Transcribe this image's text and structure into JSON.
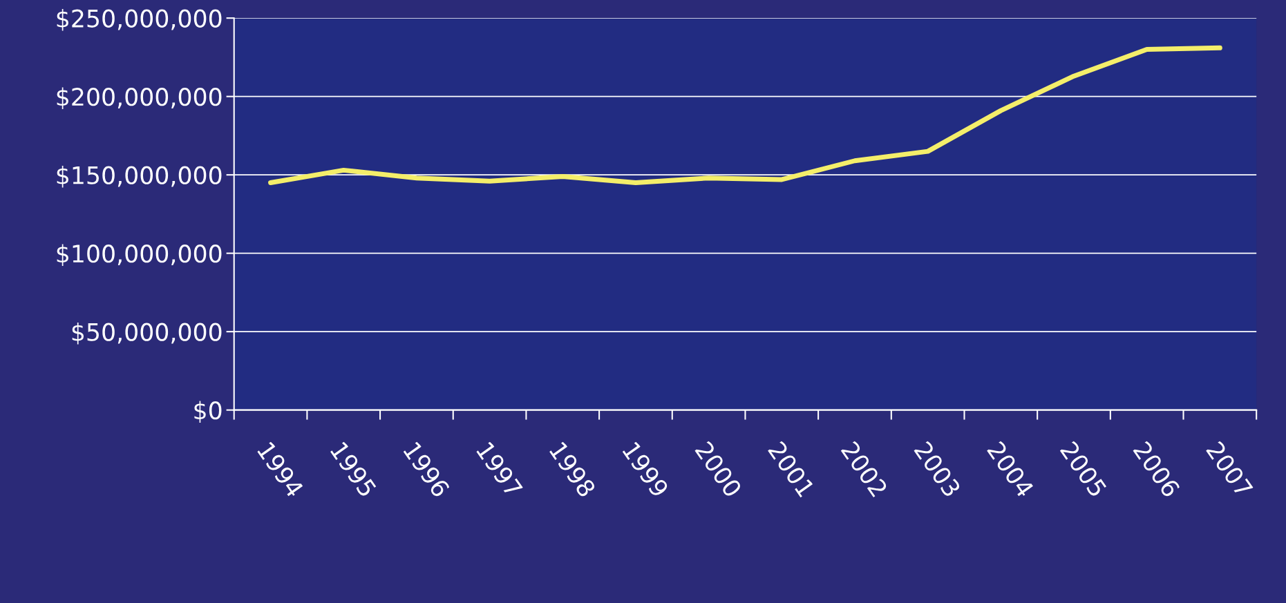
{
  "chart_data": {
    "type": "line",
    "categories": [
      "1994",
      "1995",
      "1996",
      "1997",
      "1998",
      "1999",
      "2000",
      "2001",
      "2002",
      "2003",
      "2004",
      "2005",
      "2006",
      "2007"
    ],
    "series": [
      {
        "color": "#f4ee6a",
        "values": [
          145000000,
          153000000,
          148000000,
          146000000,
          149000000,
          145000000,
          148000000,
          147000000,
          159000000,
          165000000,
          191000000,
          213000000,
          230000000,
          231000000
        ]
      }
    ],
    "ylim": [
      0,
      250000000
    ],
    "yticks": [
      {
        "value": 0,
        "label": "$0"
      },
      {
        "value": 50000000,
        "label": "$50,000,000"
      },
      {
        "value": 100000000,
        "label": "$100,000,000"
      },
      {
        "value": 150000000,
        "label": "$150,000,000"
      },
      {
        "value": 200000000,
        "label": "$200,000,000"
      },
      {
        "value": 250000000,
        "label": "$250,000,000"
      }
    ],
    "grid": "y",
    "marker": "none",
    "line_style": "solid"
  }
}
